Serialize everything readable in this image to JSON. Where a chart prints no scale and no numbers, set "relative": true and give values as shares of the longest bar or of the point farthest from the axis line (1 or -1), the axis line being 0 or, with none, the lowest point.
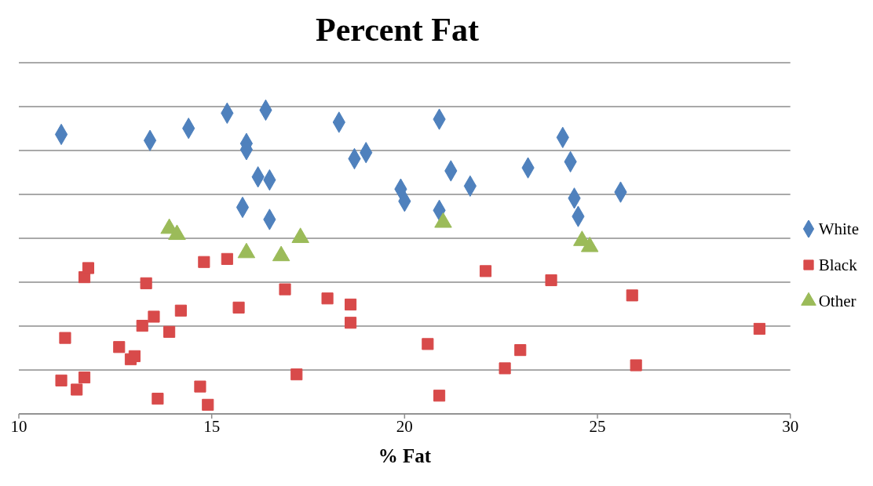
{
  "chart_data": {
    "type": "scatter",
    "title": "Percent Fat",
    "xlabel": "% Fat",
    "relative": true,
    "xlim": [
      10,
      30
    ],
    "xticks": [
      10,
      15,
      20,
      25,
      30
    ],
    "grid": "y",
    "legend": "right",
    "series": [
      {
        "name": "White",
        "color": "#4f81bd",
        "marker": "diamond",
        "x": [
          11.1,
          13.4,
          14.4,
          15.4,
          16.4,
          15.9,
          15.9,
          16.2,
          16.5,
          15.8,
          16.5,
          18.3,
          18.7,
          19.0,
          20.9,
          19.9,
          20.0,
          20.9,
          21.2,
          21.7,
          23.2,
          24.1,
          24.3,
          24.4,
          24.5,
          25.6
        ],
        "values": [
          0.92,
          0.9,
          0.94,
          0.99,
          1,
          0.89,
          0.87,
          0.78,
          0.77,
          0.68,
          0.64,
          0.96,
          0.84,
          0.86,
          0.97,
          0.74,
          0.7,
          0.67,
          0.8,
          0.75,
          0.81,
          0.91,
          0.83,
          0.71,
          0.65,
          0.73
        ]
      },
      {
        "name": "Black",
        "color": "#d84a4a",
        "marker": "square",
        "x": [
          11.1,
          11.5,
          11.7,
          11.2,
          11.7,
          11.8,
          13.3,
          12.6,
          12.9,
          13.0,
          13.2,
          13.5,
          13.9,
          14.2,
          13.6,
          14.8,
          15.4,
          14.7,
          14.9,
          15.7,
          16.9,
          17.2,
          18.0,
          18.6,
          18.6,
          20.6,
          20.9,
          22.1,
          23.8,
          22.6,
          23.0,
          25.9,
          26.0,
          29.2
        ],
        "values": [
          0.11,
          0.08,
          0.12,
          0.25,
          0.45,
          0.48,
          0.43,
          0.22,
          0.18,
          0.19,
          0.29,
          0.32,
          0.27,
          0.34,
          0.05,
          0.5,
          0.51,
          0.09,
          0.03,
          0.35,
          0.41,
          0.13,
          0.38,
          0.36,
          0.3,
          0.23,
          0.06,
          0.47,
          0.44,
          0.15,
          0.21,
          0.39,
          0.16,
          0.28
        ]
      },
      {
        "name": "Other",
        "color": "#9bbb59",
        "marker": "triangle",
        "x": [
          13.9,
          14.1,
          15.9,
          16.8,
          17.3,
          21.0,
          24.6,
          24.8
        ],
        "values": [
          0.61,
          0.59,
          0.53,
          0.52,
          0.58,
          0.63,
          0.57,
          0.55
        ]
      }
    ]
  }
}
